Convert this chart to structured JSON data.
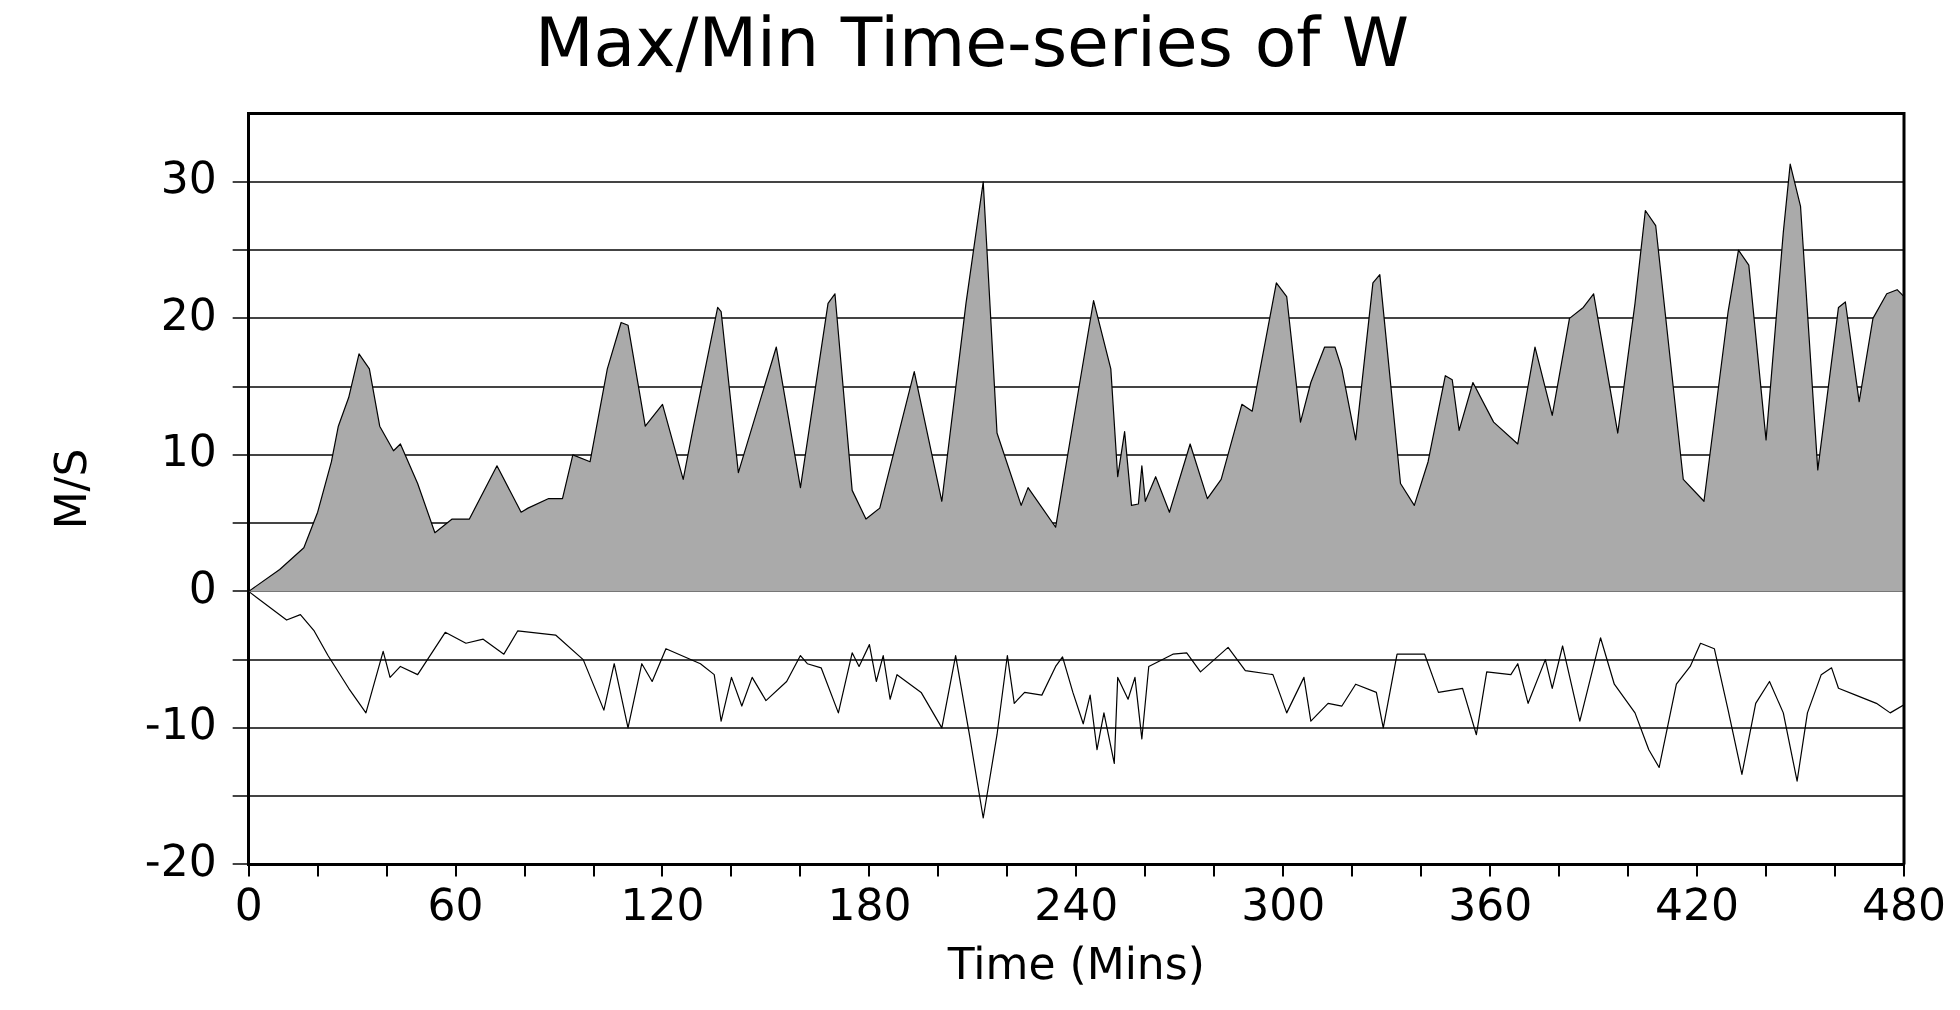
{
  "chart_data": {
    "type": "area",
    "title": "Max/Min Time-series of W",
    "xlabel": "Time (Mins)",
    "ylabel": "M/S",
    "xlim": [
      0,
      480
    ],
    "xticks": [
      0,
      {
        "value": 20,
        "label": null
      },
      {
        "value": 40,
        "label": null
      },
      60,
      {
        "value": 80,
        "label": null
      },
      {
        "value": 100,
        "label": null
      },
      120,
      {
        "value": 140,
        "label": null
      },
      {
        "value": 160,
        "label": null
      },
      180,
      {
        "value": 200,
        "label": null
      },
      {
        "value": 220,
        "label": null
      },
      240,
      {
        "value": 260,
        "label": null
      },
      {
        "value": 280,
        "label": null
      },
      300,
      {
        "value": 320,
        "label": null
      },
      {
        "value": 340,
        "label": null
      },
      360,
      {
        "value": 380,
        "label": null
      },
      {
        "value": 400,
        "label": null
      },
      420,
      {
        "value": 440,
        "label": null
      },
      {
        "value": 460,
        "label": null
      },
      480
    ],
    "ylim": [
      -20,
      35
    ],
    "yticks": [
      -20,
      {
        "value": -15,
        "label": null
      },
      -10,
      {
        "value": -5,
        "label": null
      },
      0,
      {
        "value": 5,
        "label": null
      },
      10,
      {
        "value": 15,
        "label": null
      },
      20,
      {
        "value": 25,
        "label": null
      },
      30
    ],
    "grid": "y",
    "legend": false,
    "series": [
      {
        "type": "area",
        "color": "#aaaaaa",
        "x": [
          0,
          9,
          16,
          20,
          24,
          26,
          29,
          32,
          35,
          38,
          42,
          44,
          49,
          54,
          59,
          64,
          72,
          79,
          81,
          87,
          91,
          94,
          99,
          104,
          108,
          110,
          115,
          120,
          126,
          129,
          136,
          137,
          142,
          153,
          160,
          168,
          170,
          175,
          179,
          183,
          193,
          201,
          208,
          213,
          217,
          224,
          226,
          234,
          241,
          245,
          250,
          252,
          254,
          256,
          258,
          259,
          260,
          263,
          267,
          273,
          278,
          282,
          288,
          291,
          298,
          301,
          305,
          308,
          312,
          315,
          317,
          321,
          326,
          328,
          334,
          338,
          342,
          347,
          349,
          351,
          355,
          361,
          368,
          373,
          378,
          383,
          387,
          390,
          397,
          402,
          405,
          408,
          416,
          422,
          429,
          432,
          435,
          440,
          445,
          447,
          450,
          455,
          461,
          463,
          467,
          471,
          475,
          478,
          480
        ],
        "values": [
          0,
          1.6,
          3.2,
          5.8,
          9.5,
          12.1,
          14.2,
          17.4,
          16.3,
          12.1,
          10.3,
          10.8,
          7.9,
          4.3,
          5.3,
          5.3,
          9.2,
          5.8,
          6.1,
          6.8,
          6.8,
          10,
          9.5,
          16.3,
          19.7,
          19.5,
          12.1,
          13.7,
          8.2,
          12.1,
          20.8,
          20.5,
          8.7,
          17.9,
          7.6,
          21.1,
          21.8,
          7.4,
          5.3,
          6.1,
          16.1,
          6.6,
          21.1,
          30,
          11.6,
          6.3,
          7.6,
          4.7,
          15.3,
          21.3,
          16.3,
          8.4,
          11.7,
          6.3,
          6.4,
          9.2,
          6.6,
          8.4,
          5.8,
          10.8,
          6.8,
          8.2,
          13.7,
          13.2,
          22.6,
          21.6,
          12.4,
          15.3,
          17.9,
          17.9,
          16.3,
          11.1,
          22.6,
          23.2,
          7.9,
          6.3,
          9.5,
          15.8,
          15.5,
          11.8,
          15.3,
          12.4,
          10.8,
          17.9,
          12.9,
          20,
          20.8,
          21.8,
          11.6,
          21.1,
          27.9,
          26.8,
          8.2,
          6.6,
          20.5,
          25,
          23.9,
          11.1,
          26.3,
          31.3,
          28.2,
          8.9,
          20.8,
          21.2,
          13.9,
          20,
          21.8,
          22.1,
          21.6
        ]
      },
      {
        "type": "line",
        "color": "#000000",
        "x": [
          0,
          11,
          15,
          19,
          23,
          29,
          34,
          39,
          41,
          44,
          49,
          57,
          63,
          68,
          74,
          78,
          89,
          97,
          103,
          106,
          110,
          114,
          117,
          121,
          131,
          135,
          137,
          140,
          143,
          146,
          150,
          156,
          160,
          162,
          166,
          171,
          175,
          177,
          180,
          182,
          184,
          186,
          188,
          195,
          201,
          205,
          209,
          213,
          217,
          220,
          222,
          225,
          230,
          234,
          236,
          239,
          242,
          244,
          246,
          248,
          251,
          252,
          255,
          257,
          259,
          261,
          268,
          272,
          276,
          284,
          289,
          297,
          301,
          306,
          308,
          313,
          317,
          321,
          327,
          329,
          333,
          341,
          345,
          352,
          356,
          359,
          366,
          368,
          371,
          376,
          378,
          381,
          386,
          392,
          396,
          402,
          406,
          409,
          414,
          418,
          421,
          425,
          429,
          433,
          437,
          441,
          445,
          449,
          452,
          456,
          459,
          461,
          466,
          472,
          476,
          480
        ],
        "values": [
          0,
          -2.1,
          -1.7,
          -2.9,
          -4.7,
          -7.1,
          -8.9,
          -4.4,
          -6.3,
          -5.5,
          -6.1,
          -3,
          -3.8,
          -3.5,
          -4.6,
          -2.9,
          -3.2,
          -5,
          -8.7,
          -5.3,
          -10,
          -5.3,
          -6.6,
          -4.2,
          -5.3,
          -6.1,
          -9.5,
          -6.3,
          -8.4,
          -6.3,
          -8,
          -6.6,
          -4.7,
          -5.3,
          -5.6,
          -8.9,
          -4.5,
          -5.5,
          -3.9,
          -6.6,
          -4.7,
          -7.9,
          -6.1,
          -7.4,
          -10,
          -4.7,
          -10.5,
          -16.6,
          -10.5,
          -4.7,
          -8.2,
          -7.4,
          -7.6,
          -5.5,
          -4.8,
          -7.4,
          -9.7,
          -7.6,
          -11.6,
          -8.9,
          -12.6,
          -6.3,
          -7.9,
          -6.3,
          -10.8,
          -5.5,
          -4.6,
          -4.5,
          -5.9,
          -4.1,
          -5.8,
          -6.1,
          -8.9,
          -6.3,
          -9.5,
          -8.2,
          -8.4,
          -6.8,
          -7.4,
          -10,
          -4.6,
          -4.6,
          -7.4,
          -7.1,
          -10.5,
          -5.9,
          -6.1,
          -5.3,
          -8.2,
          -5,
          -7.1,
          -4,
          -9.5,
          -3.4,
          -6.8,
          -8.9,
          -11.6,
          -12.9,
          -6.8,
          -5.5,
          -3.8,
          -4.2,
          -8.7,
          -13.4,
          -8.2,
          -6.6,
          -8.9,
          -13.9,
          -8.9,
          -6.1,
          -5.6,
          -7.1,
          -7.6,
          -8.2,
          -8.9,
          -8.3
        ]
      }
    ]
  }
}
